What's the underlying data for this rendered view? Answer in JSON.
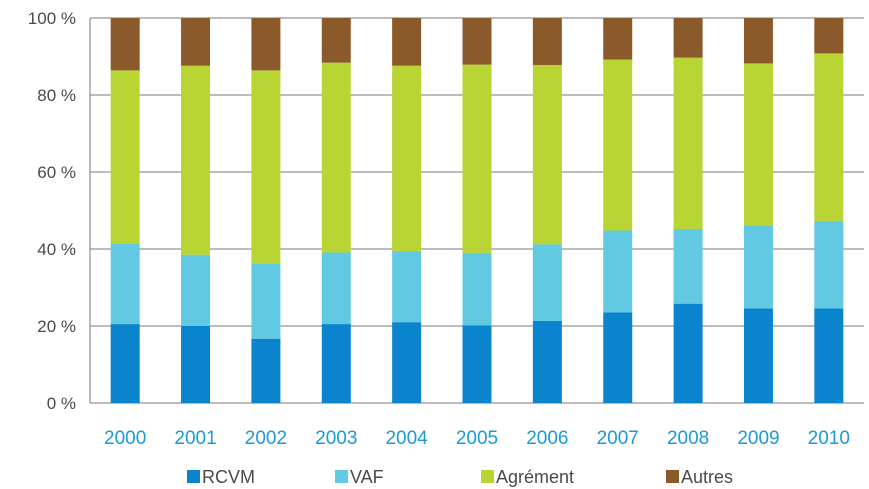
{
  "chart_data": {
    "type": "bar",
    "stacked": true,
    "categories": [
      "2000",
      "2001",
      "2002",
      "2003",
      "2004",
      "2005",
      "2006",
      "2007",
      "2008",
      "2009",
      "2010"
    ],
    "series": [
      {
        "name": "RCVM",
        "color": "#0a84cc",
        "values": [
          20.5,
          20.0,
          16.7,
          20.5,
          21.0,
          20.2,
          21.3,
          23.5,
          25.8,
          24.6,
          24.6
        ]
      },
      {
        "name": "VAF",
        "color": "#62c9e3",
        "values": [
          21.0,
          18.5,
          19.5,
          18.6,
          18.5,
          18.8,
          19.9,
          21.3,
          19.4,
          21.6,
          22.7
        ]
      },
      {
        "name": "Agrément",
        "color": "#b8d534",
        "values": [
          44.9,
          49.1,
          50.2,
          49.3,
          48.1,
          48.9,
          46.6,
          44.4,
          44.5,
          42.0,
          43.5
        ]
      },
      {
        "name": "Autres",
        "color": "#8b5a2b",
        "values": [
          13.6,
          12.4,
          13.6,
          11.6,
          12.4,
          12.1,
          12.2,
          10.8,
          10.3,
          11.8,
          9.2
        ]
      }
    ],
    "yticks": [
      "0 %",
      "20 %",
      "40 %",
      "60 %",
      "80 %",
      "100 %"
    ],
    "ylim": [
      0,
      100
    ],
    "xtick_color": "#1a9ad6",
    "grid": true,
    "legend_position": "bottom"
  }
}
